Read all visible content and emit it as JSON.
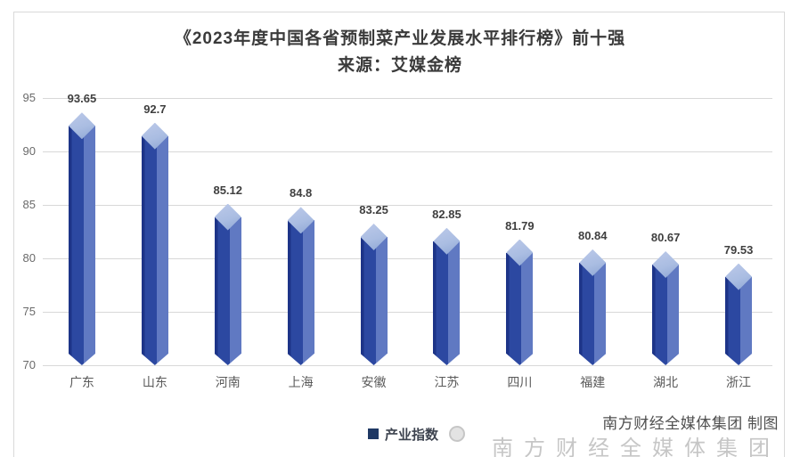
{
  "header": {
    "title": "《2023年度中国各省预制菜产业发展水平排行榜》前十强",
    "subtitle": "来源：艾媒金榜"
  },
  "legend": {
    "label": "产业指数",
    "swatch_color": "#1f3864"
  },
  "footer": {
    "attribution": "南方财经全媒体集团 制图",
    "watermark": "南方财经全媒体集团"
  },
  "chart_data": {
    "type": "bar",
    "title": "《2023年度中国各省预制菜产业发展水平排行榜》前十强",
    "subtitle": "来源：艾媒金榜",
    "series_name": "产业指数",
    "categories": [
      "广东",
      "山东",
      "河南",
      "上海",
      "安徽",
      "江苏",
      "四川",
      "福建",
      "湖北",
      "浙江"
    ],
    "values": [
      93.65,
      92.7,
      85.12,
      84.8,
      83.25,
      82.85,
      81.79,
      80.84,
      80.67,
      79.53
    ],
    "ylim": [
      70,
      95
    ],
    "yticks": [
      95,
      90,
      85,
      80,
      75,
      70
    ],
    "grid": true,
    "legend_position": "bottom",
    "style": "3d-diamond-column",
    "colors": {
      "bar_left_face": "#2c48a1",
      "bar_right_face": "#6079c2",
      "bar_edge": "#1d3488",
      "bar_top_face": "#aabde2",
      "gridline": "#d8d8d8"
    }
  }
}
